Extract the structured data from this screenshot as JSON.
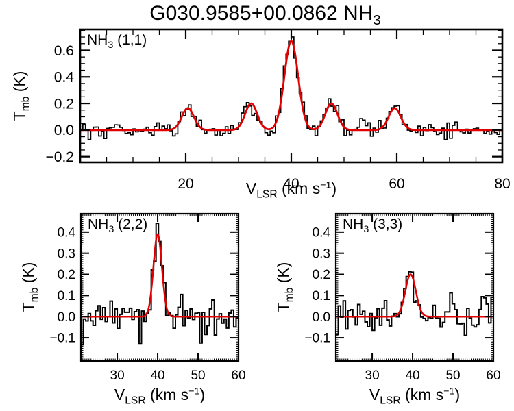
{
  "figure": {
    "title_main": "G030.9585+00.0862 NH",
    "title_sub": "3"
  },
  "colors": {
    "background": "#ffffff",
    "data_line": "#000000",
    "fit_line": "#e00000",
    "frame": "#000000",
    "text": "#000000"
  },
  "axis_labels": {
    "x_v": "V",
    "x_sub": "LSR",
    "x_unit_pre": " (km s",
    "x_sup": "−1",
    "x_unit_post": ")",
    "y_t": "T",
    "y_sub": "mb",
    "y_unit": " (K)"
  },
  "chart_data": [
    {
      "id": "nh3_11",
      "type": "line",
      "label_main": "NH",
      "label_sub": "3",
      "label_post": " (1,1)",
      "xlabel": "V_LSR (km s^-1)",
      "ylabel": "T_mb (K)",
      "xlim": [
        0,
        80
      ],
      "ylim": [
        -0.243,
        0.757
      ],
      "xticks": [
        20,
        40,
        60,
        80
      ],
      "xminor": 5,
      "yticks": [
        -0.2,
        0.0,
        0.2,
        0.4,
        0.6
      ],
      "yminor": 0.05,
      "baseline": 0.0,
      "fit_gaussians": [
        {
          "center": 20.4,
          "amp": 0.165,
          "sigma": 1.15
        },
        {
          "center": 32.4,
          "amp": 0.2,
          "sigma": 1.15
        },
        {
          "center": 40.0,
          "amp": 0.67,
          "sigma": 1.3
        },
        {
          "center": 47.6,
          "amp": 0.2,
          "sigma": 1.15
        },
        {
          "center": 59.6,
          "amp": 0.165,
          "sigma": 1.15
        }
      ],
      "noise": {
        "sigma": 0.033,
        "seed": 12345
      },
      "channel_width": 0.5
    },
    {
      "id": "nh3_22",
      "type": "line",
      "label_main": "NH",
      "label_sub": "3",
      "label_post": " (2,2)",
      "xlabel": "V_LSR (km s^-1)",
      "ylabel": "T_mb (K)",
      "xlim": [
        21,
        60
      ],
      "ylim": [
        -0.21,
        0.487
      ],
      "xticks": [
        30,
        40,
        50,
        60
      ],
      "xminor": 0.5,
      "yticks": [
        -0.1,
        0.0,
        0.1,
        0.2,
        0.3,
        0.4
      ],
      "yminor": 0.01,
      "baseline": 0.0,
      "fit_gaussians": [
        {
          "center": 40.0,
          "amp": 0.39,
          "sigma": 1.05
        }
      ],
      "noise": {
        "sigma": 0.042,
        "seed": 54321
      },
      "channel_width": 0.6
    },
    {
      "id": "nh3_33",
      "type": "line",
      "label_main": "NH",
      "label_sub": "3",
      "label_post": " (3,3)",
      "xlabel": "V_LSR (km s^-1)",
      "ylabel": "T_mb (K)",
      "xlim": [
        21,
        60
      ],
      "ylim": [
        -0.21,
        0.487
      ],
      "xticks": [
        30,
        40,
        50,
        60
      ],
      "xminor": 0.5,
      "yticks": [
        -0.1,
        0.0,
        0.1,
        0.2,
        0.3,
        0.4
      ],
      "yminor": 0.01,
      "baseline": 0.0,
      "fit_gaussians": [
        {
          "center": 39.5,
          "amp": 0.2,
          "sigma": 1.3
        }
      ],
      "noise": {
        "sigma": 0.042,
        "seed": 98765
      },
      "channel_width": 0.6
    }
  ]
}
